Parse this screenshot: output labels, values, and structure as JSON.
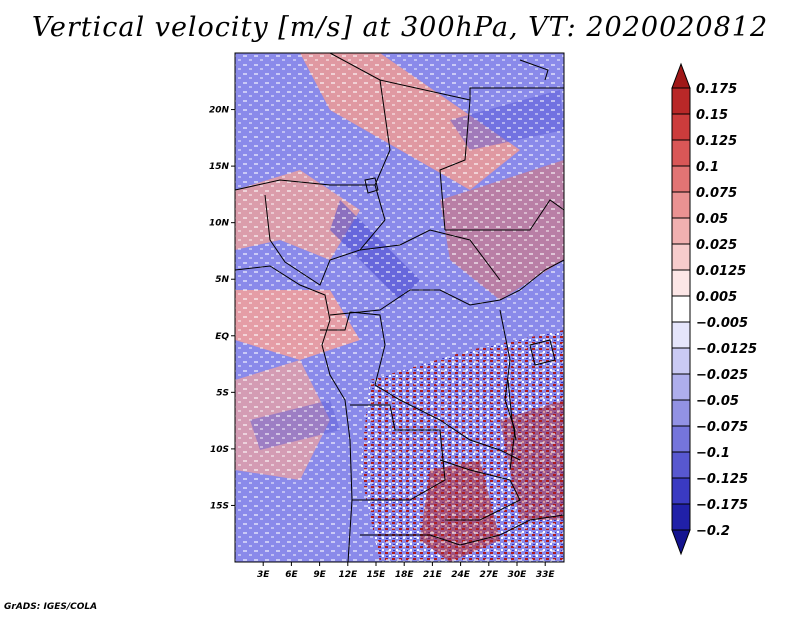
{
  "title": "Vertical velocity [m/s] at 300hPa, VT: 2020020812",
  "credit": "GrADS: IGES/COLA",
  "map": {
    "variable": "Vertical velocity",
    "units": "m/s",
    "level": "300hPa",
    "valid_time": "2020020812",
    "lat_labels": [
      "20N",
      "15N",
      "10N",
      "5N",
      "EQ",
      "5S",
      "10S",
      "15S"
    ],
    "lat_values": [
      20,
      15,
      10,
      5,
      0,
      -5,
      -10,
      -15
    ],
    "lon_labels": [
      "3E",
      "6E",
      "9E",
      "12E",
      "15E",
      "18E",
      "21E",
      "24E",
      "27E",
      "30E",
      "33E"
    ],
    "lon_values": [
      3,
      6,
      9,
      12,
      15,
      18,
      21,
      24,
      27,
      30,
      33
    ],
    "lon_range": [
      0,
      35
    ],
    "lat_range": [
      -20,
      25
    ]
  },
  "colorbar": {
    "labels": [
      "0.175",
      "0.15",
      "0.125",
      "0.1",
      "0.075",
      "0.05",
      "0.025",
      "0.0125",
      "0.005",
      "−0.005",
      "−0.0125",
      "−0.025",
      "−0.05",
      "−0.075",
      "−0.1",
      "−0.125",
      "−0.175",
      "−0.2"
    ],
    "colors": [
      "#a01818",
      "#b92828",
      "#cc3c3c",
      "#d95757",
      "#e27474",
      "#ea9292",
      "#f1b0b0",
      "#f7cccc",
      "#fce6e6",
      "#ffffff",
      "#e5e5fb",
      "#cacaf4",
      "#aeaeec",
      "#9292e4",
      "#7575db",
      "#5858d0",
      "#3a3ac2",
      "#2020a8",
      "#141490"
    ]
  },
  "colors": {
    "neg_field": "#8080e8",
    "pos_field": "#e89090",
    "border": "#000000"
  }
}
